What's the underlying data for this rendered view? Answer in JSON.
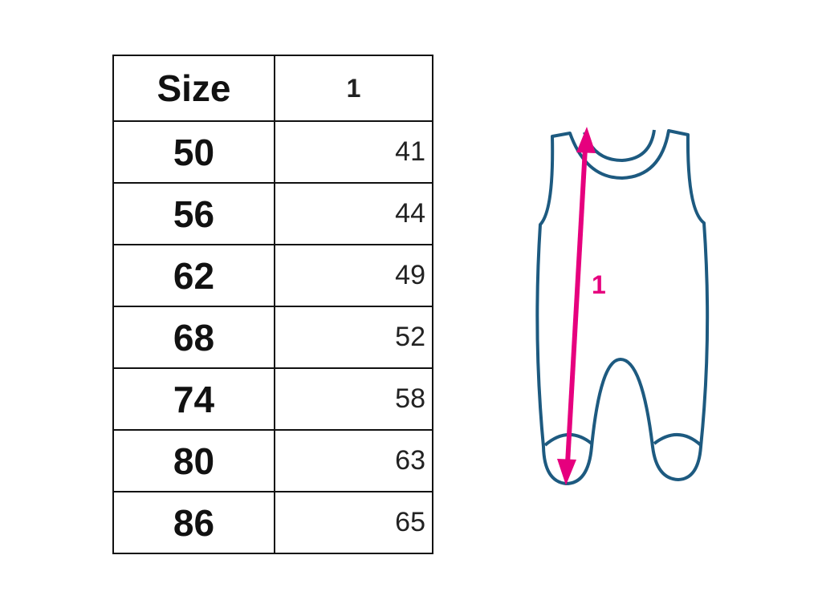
{
  "table": {
    "headers": [
      "Size",
      "1"
    ],
    "rows": [
      {
        "size": "50",
        "value": "41"
      },
      {
        "size": "56",
        "value": "44"
      },
      {
        "size": "62",
        "value": "49"
      },
      {
        "size": "68",
        "value": "52"
      },
      {
        "size": "74",
        "value": "58"
      },
      {
        "size": "80",
        "value": "63"
      },
      {
        "size": "86",
        "value": "65"
      }
    ]
  },
  "diagram": {
    "measurement_label": "1",
    "outline_color": "#1d5a80",
    "arrow_color": "#e6007e"
  }
}
